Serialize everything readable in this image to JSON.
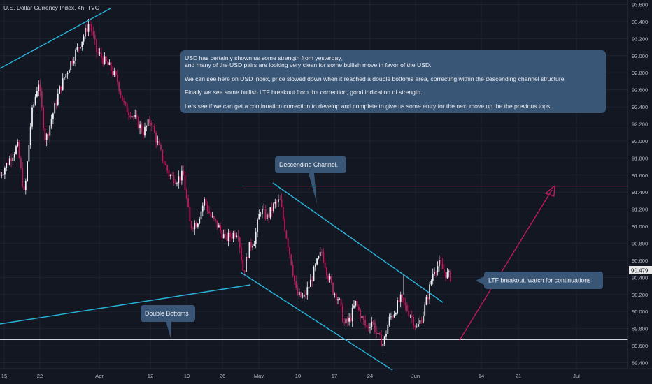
{
  "header": {
    "title": "U.S. Dollar Currency Index, 4h, TVC"
  },
  "colors": {
    "background": "#131722",
    "grid": "#1f2330",
    "candle_up": "#eef0f4",
    "candle_down": "#c2185b",
    "channel": "#27b5d9",
    "arrow": "#c2185b",
    "callout_bg": "#3a5677",
    "price_label_bg": "#e8e8e8"
  },
  "annotations": {
    "main_note": {
      "line1": "USD has certainly shown us some strength from yesterday,",
      "line2": "and many of the USD pairs are looking very clean for some bullish move in favor of the USD.",
      "line3": "We can see here on USD index, price slowed down when it reached a double bottoms area, correcting within the descending channel structure.",
      "line4": "Finally we see some bullish LTF breakout from the correction, good indication of strength.",
      "line5": "Lets see if we can get a continuation correction to develop and complete to give us some entry for the next move up the the previous tops."
    },
    "channel_label": "Descending Channel.",
    "breakout_label": "LTF breakout, watch for continuations",
    "double_bottom_label": "Double Bottoms"
  },
  "chart_data": {
    "type": "candlestick",
    "title": "U.S. Dollar Currency Index, 4h, TVC",
    "ylim": [
      89.3,
      93.65
    ],
    "y_ticks": [
      "93.600",
      "93.400",
      "93.200",
      "93.000",
      "92.800",
      "92.600",
      "92.400",
      "92.200",
      "92.000",
      "91.800",
      "91.600",
      "91.400",
      "91.200",
      "91.000",
      "90.800",
      "90.600",
      "90.400",
      "90.200",
      "90.000",
      "89.800",
      "89.600",
      "89.400"
    ],
    "x_ticks": [
      "15",
      "22",
      "Apr",
      "12",
      "19",
      "26",
      "May",
      "10",
      "17",
      "24",
      "Jun",
      "14",
      "21",
      "Jul"
    ],
    "current_price": "90.479",
    "levels": {
      "resistance": 91.47,
      "support": 89.67
    },
    "path_keypoints": [
      {
        "t": 0,
        "v": 91.6
      },
      {
        "t": 15,
        "v": 91.8
      },
      {
        "t": 25,
        "v": 91.95
      },
      {
        "t": 35,
        "v": 91.35
      },
      {
        "t": 45,
        "v": 92.3
      },
      {
        "t": 55,
        "v": 92.7
      },
      {
        "t": 65,
        "v": 92.0
      },
      {
        "t": 85,
        "v": 92.6
      },
      {
        "t": 100,
        "v": 92.9
      },
      {
        "t": 118,
        "v": 93.2
      },
      {
        "t": 128,
        "v": 93.4
      },
      {
        "t": 138,
        "v": 93.05
      },
      {
        "t": 148,
        "v": 92.95
      },
      {
        "t": 158,
        "v": 92.85
      },
      {
        "t": 168,
        "v": 92.7
      },
      {
        "t": 178,
        "v": 92.4
      },
      {
        "t": 190,
        "v": 92.3
      },
      {
        "t": 205,
        "v": 92.1
      },
      {
        "t": 215,
        "v": 92.25
      },
      {
        "t": 222,
        "v": 92.05
      },
      {
        "t": 232,
        "v": 91.8
      },
      {
        "t": 242,
        "v": 91.6
      },
      {
        "t": 252,
        "v": 91.55
      },
      {
        "t": 262,
        "v": 91.6
      },
      {
        "t": 272,
        "v": 91.0
      },
      {
        "t": 282,
        "v": 91.05
      },
      {
        "t": 292,
        "v": 91.3
      },
      {
        "t": 302,
        "v": 91.1
      },
      {
        "t": 312,
        "v": 91.0
      },
      {
        "t": 322,
        "v": 90.85
      },
      {
        "t": 332,
        "v": 90.9
      },
      {
        "t": 340,
        "v": 90.95
      },
      {
        "t": 348,
        "v": 90.45
      },
      {
        "t": 356,
        "v": 90.75
      },
      {
        "t": 364,
        "v": 90.85
      },
      {
        "t": 372,
        "v": 91.2
      },
      {
        "t": 382,
        "v": 91.1
      },
      {
        "t": 392,
        "v": 91.25
      },
      {
        "t": 400,
        "v": 91.3
      },
      {
        "t": 408,
        "v": 90.95
      },
      {
        "t": 416,
        "v": 90.6
      },
      {
        "t": 424,
        "v": 90.2
      },
      {
        "t": 434,
        "v": 90.15
      },
      {
        "t": 444,
        "v": 90.35
      },
      {
        "t": 452,
        "v": 90.55
      },
      {
        "t": 460,
        "v": 90.7
      },
      {
        "t": 468,
        "v": 90.45
      },
      {
        "t": 476,
        "v": 90.25
      },
      {
        "t": 484,
        "v": 90.15
      },
      {
        "t": 492,
        "v": 89.85
      },
      {
        "t": 500,
        "v": 89.9
      },
      {
        "t": 508,
        "v": 90.1
      },
      {
        "t": 516,
        "v": 89.95
      },
      {
        "t": 524,
        "v": 89.8
      },
      {
        "t": 532,
        "v": 89.9
      },
      {
        "t": 540,
        "v": 89.7
      },
      {
        "t": 548,
        "v": 89.62
      },
      {
        "t": 556,
        "v": 89.9
      },
      {
        "t": 564,
        "v": 90.0
      },
      {
        "t": 572,
        "v": 90.15
      },
      {
        "t": 580,
        "v": 90.05
      },
      {
        "t": 588,
        "v": 89.95
      },
      {
        "t": 596,
        "v": 89.8
      },
      {
        "t": 604,
        "v": 89.95
      },
      {
        "t": 612,
        "v": 90.2
      },
      {
        "t": 620,
        "v": 90.5
      },
      {
        "t": 628,
        "v": 90.55
      },
      {
        "t": 636,
        "v": 90.45
      },
      {
        "t": 645,
        "v": 90.4
      }
    ]
  }
}
